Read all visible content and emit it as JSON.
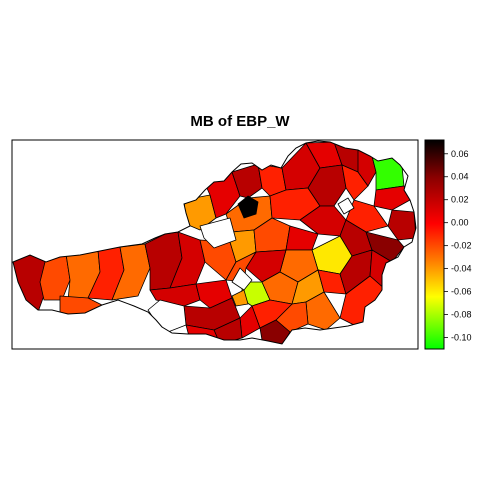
{
  "title": "MB of EBP_W",
  "legend": {
    "ticks": [
      "0.06",
      "0.04",
      "0.02",
      "0.00",
      "-0.02",
      "-0.04",
      "-0.06",
      "-0.08",
      "-0.10"
    ],
    "tick_values": [
      0.06,
      0.04,
      0.02,
      0.0,
      -0.02,
      -0.04,
      -0.06,
      -0.08,
      -0.1
    ],
    "range": [
      -0.11,
      0.072
    ],
    "colors": [
      "#000000",
      "#8b0000",
      "#ff0000",
      "#ff7f00",
      "#ffff00",
      "#00ff00"
    ]
  },
  "map": {
    "border_color": "#000000",
    "no_data_color": "#ffffff",
    "region_colors": [
      "#d40000",
      "#e50000",
      "#b80000",
      "#ff2000",
      "#ff4a00",
      "#ff6a00",
      "#ff9a00",
      "#ffb800",
      "#ffe800",
      "#c8ff00",
      "#33ff00",
      "#000000",
      "#8a0000"
    ]
  }
}
